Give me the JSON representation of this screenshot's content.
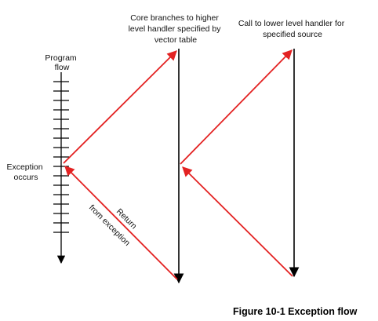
{
  "labels": {
    "program_flow": [
      "Program",
      "flow"
    ],
    "exception_occurs": [
      "Exception",
      "occurs"
    ],
    "core_branches": [
      "Core branches to higher",
      "level handler specified by",
      "vector table"
    ],
    "call_lower": [
      "Call to lower level handler for",
      "specified source"
    ],
    "return_line1": "Return",
    "return_line2": "from exception"
  },
  "caption": "Figure 10-1 Exception flow",
  "colors": {
    "red_flow": "#e32222",
    "black_line": "#000000"
  }
}
